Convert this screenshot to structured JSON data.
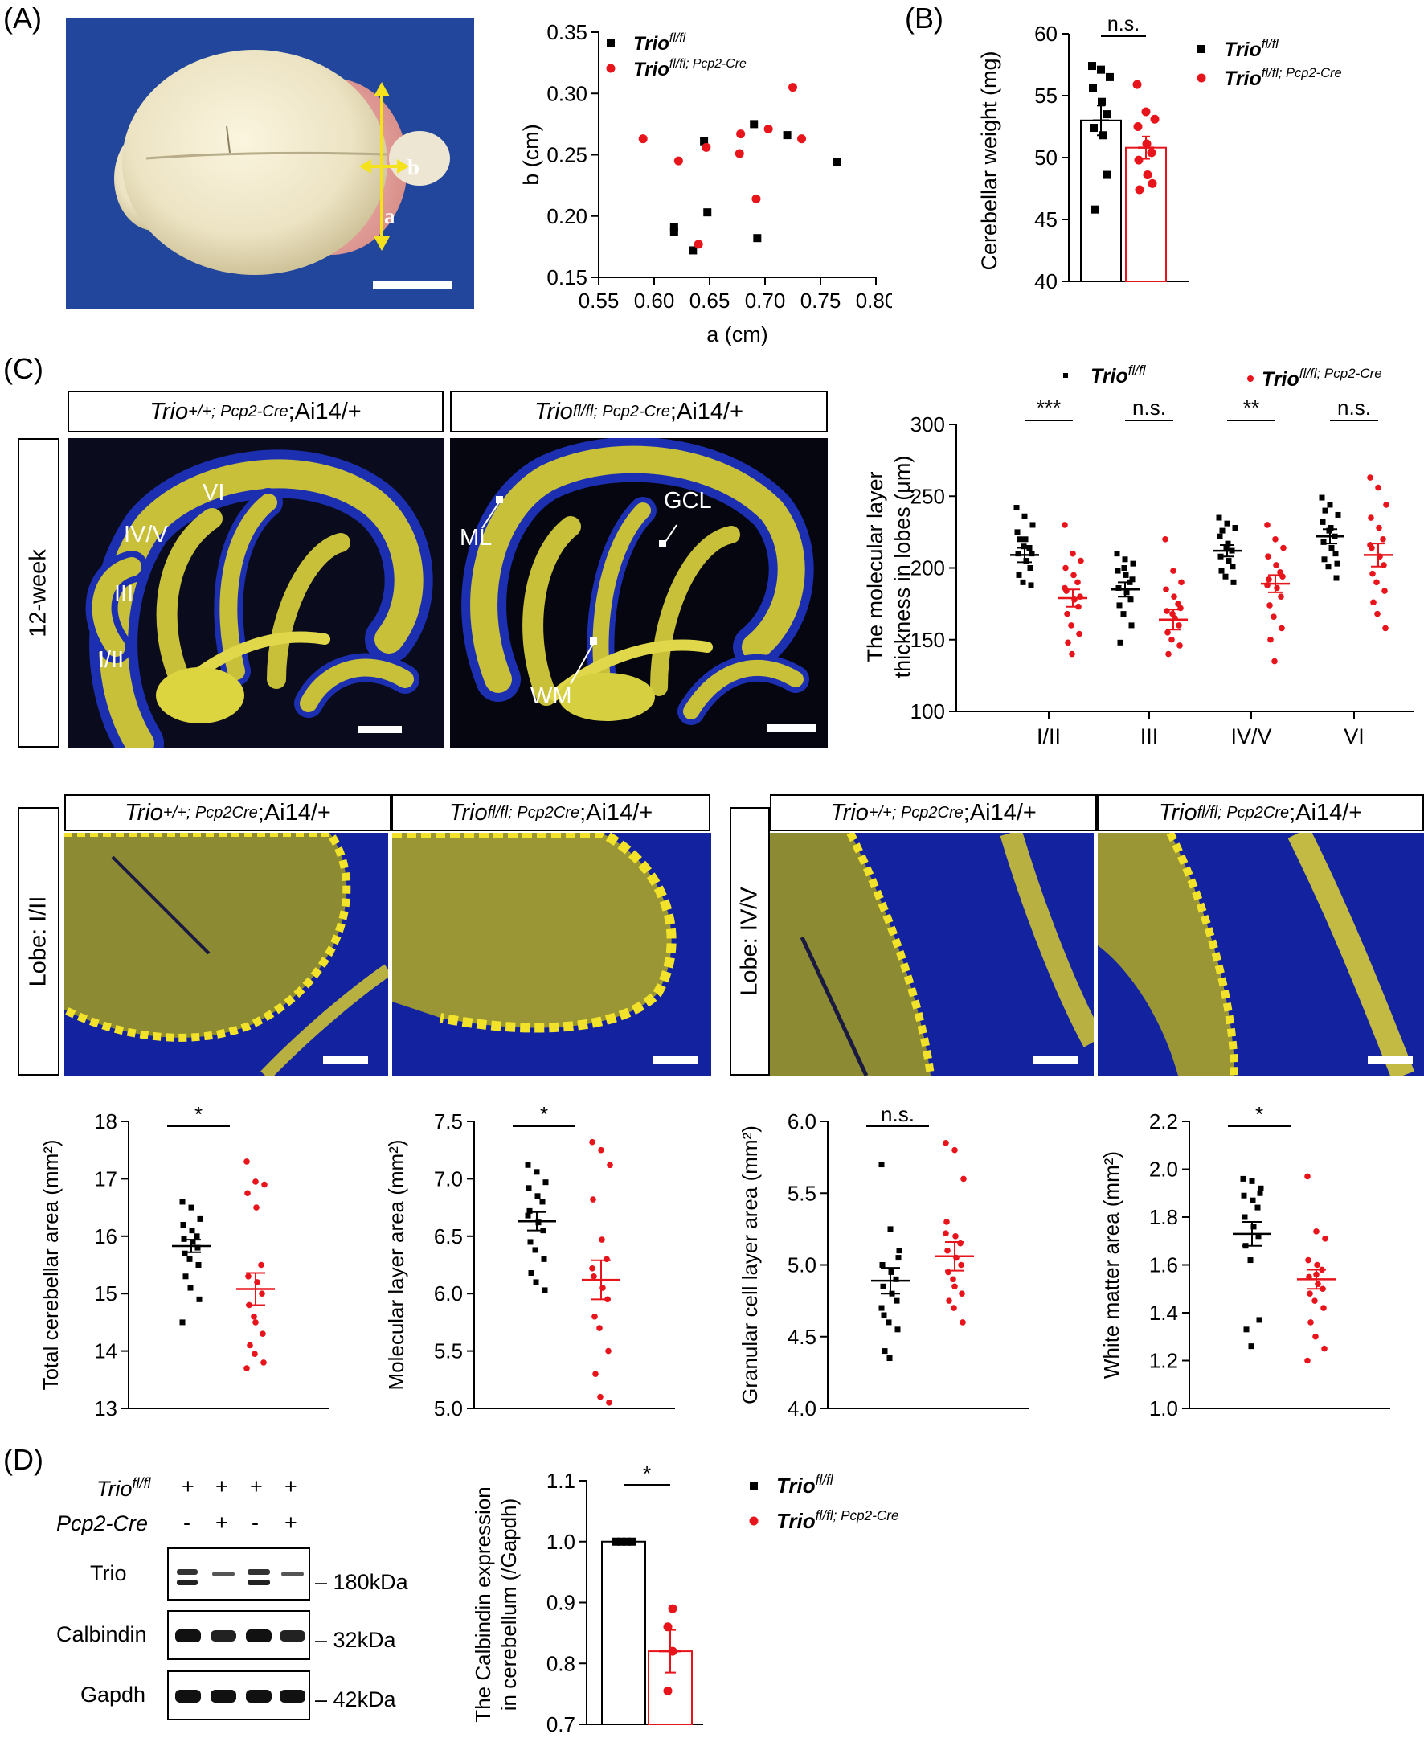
{
  "panel_labels": {
    "A": "(A)",
    "B": "(B)",
    "C": "(C)",
    "D": "(D)"
  },
  "panel_a": {
    "photo_label_a": "a",
    "photo_label_b": "b"
  },
  "legend": {
    "trio_fl": "Trio",
    "trio_fl_sup": "fl/fl",
    "trio_cre": "Trio",
    "trio_cre_sup": "fl/fl; Pcp2-Cre"
  },
  "panel_c_images": {
    "ctrl_label_main": "Trio",
    "ctrl_label_sup": "+/+; Pcp2-Cre",
    "ctrl_label_tail": ";Ai14/+",
    "ko_label_main": "Trio",
    "ko_label_sup": "fl/fl; Pcp2-Cre",
    "ko_label_tail": ";Ai14/+",
    "age": "12-week",
    "lobe_labels": [
      "IV/V",
      "VI",
      "III",
      "I/II"
    ],
    "region_labels": [
      "ML",
      "GCL",
      "WM"
    ]
  },
  "zoom_images": {
    "ctrl_main": "Trio",
    "ctrl_sup": "+/+; Pcp2Cre",
    "ko_main": "Trio",
    "ko_sup": "fl/fl; Pcp2Cre",
    "tail": ";Ai14/+",
    "lobe_a": "Lobe: I/II",
    "lobe_b": "Lobe: IV/V"
  },
  "panel_d": {
    "row1_label": "Trio",
    "row1_sup": "fl/fl",
    "row2_label": "Pcp2-Cre",
    "row1_values": [
      "+",
      "+",
      "+",
      "+"
    ],
    "row2_values": [
      "-",
      "+",
      "-",
      "+"
    ],
    "blots": [
      {
        "name": "Trio",
        "size": "180kDa"
      },
      {
        "name": "Calbindin",
        "size": "32kDa"
      },
      {
        "name": "Gapdh",
        "size": "42kDa"
      }
    ]
  },
  "colors": {
    "control": "#000000",
    "knockout": "#e8141b",
    "fluor_yellow": "#d8d23a",
    "fluor_blue": "#1a2aa8"
  },
  "chart_data": [
    {
      "id": "scatter_a_b",
      "type": "scatter",
      "xlabel": "a (cm)",
      "ylabel": "b (cm)",
      "xlim": [
        0.55,
        0.8
      ],
      "ylim": [
        0.15,
        0.35
      ],
      "xticks": [
        "0.55",
        "0.60",
        "0.65",
        "0.70",
        "0.75",
        "0.80"
      ],
      "yticks": [
        "0.15",
        "0.20",
        "0.25",
        "0.30",
        "0.35"
      ],
      "series": [
        {
          "name": "Trio fl/fl",
          "points": [
            [
              0.645,
              0.261
            ],
            [
              0.69,
              0.275
            ],
            [
              0.72,
              0.266
            ],
            [
              0.765,
              0.244
            ],
            [
              0.648,
              0.203
            ],
            [
              0.618,
              0.191
            ],
            [
              0.618,
              0.187
            ],
            [
              0.635,
              0.172
            ],
            [
              0.693,
              0.182
            ]
          ]
        },
        {
          "name": "Trio fl/fl; Pcp2-Cre",
          "points": [
            [
              0.59,
              0.263
            ],
            [
              0.622,
              0.245
            ],
            [
              0.647,
              0.256
            ],
            [
              0.678,
              0.267
            ],
            [
              0.703,
              0.271
            ],
            [
              0.725,
              0.305
            ],
            [
              0.733,
              0.263
            ],
            [
              0.677,
              0.251
            ],
            [
              0.692,
              0.214
            ],
            [
              0.64,
              0.177
            ]
          ]
        }
      ]
    },
    {
      "id": "cerebellar_weight",
      "type": "bar",
      "ylabel": "Cerebellar weight (mg)",
      "ylim": [
        40,
        60
      ],
      "yticks": [
        "40",
        "45",
        "50",
        "55",
        "60"
      ],
      "significance": "n.s.",
      "series": [
        {
          "name": "Trio fl/fl",
          "mean": 53.0,
          "sem": 1.2,
          "values": [
            57.4,
            57.1,
            56.5,
            55.6,
            54.5,
            53.5,
            52.4,
            51.8,
            48.6,
            45.8
          ]
        },
        {
          "name": "Trio fl/fl; Pcp2-Cre",
          "mean": 50.8,
          "sem": 0.9,
          "values": [
            55.9,
            53.7,
            53.1,
            52.5,
            51.1,
            50.4,
            49.8,
            48.6,
            47.9,
            47.4
          ]
        }
      ]
    },
    {
      "id": "ml_thickness",
      "type": "scatter",
      "ylabel_line1": "The molecular layer",
      "ylabel_line2": "thickness in lobes (μm)",
      "ylim": [
        100,
        300
      ],
      "yticks": [
        "100",
        "150",
        "200",
        "250",
        "300"
      ],
      "categories": [
        "I/II",
        "III",
        "IV/V",
        "VI"
      ],
      "significance": [
        "***",
        "n.s.",
        "**",
        "n.s."
      ],
      "series": [
        {
          "name": "Trio fl/fl",
          "means": [
            209,
            185,
            212,
            222
          ],
          "sems": [
            5,
            5,
            4,
            5
          ],
          "values": [
            [
              242,
              236,
              230,
              225,
              220,
              214,
              210,
              205,
              200,
              195,
              190,
              188,
              220,
              215,
              210
            ],
            [
              210,
              206,
              203,
              198,
              195,
              190,
              186,
              183,
              178,
              174,
              168,
              160,
              148,
              200,
              192
            ],
            [
              235,
              231,
              228,
              222,
              217,
              212,
              208,
              205,
              201,
              198,
              194,
              190,
              226,
              214
            ],
            [
              249,
              244,
              237,
              232,
              228,
              222,
              218,
              214,
              210,
              206,
              201,
              193,
              240,
              226,
              203
            ]
          ]
        },
        {
          "name": "Trio fl/fl; Pcp2-Cre",
          "means": [
            179,
            164,
            189,
            209
          ],
          "sems": [
            6,
            7,
            6,
            8
          ],
          "values": [
            [
              230,
              210,
              205,
              200,
              195,
              190,
              184,
              178,
              173,
              168,
              160,
              154,
              148,
              140,
              180,
              186
            ],
            [
              220,
              198,
              190,
              185,
              180,
              175,
              170,
              165,
              160,
              155,
              150,
              146,
              140,
              168,
              172
            ],
            [
              230,
              220,
              214,
              208,
              202,
              197,
              192,
              186,
              180,
              174,
              166,
              158,
              150,
              135,
              194,
              188
            ],
            [
              263,
              256,
              244,
              235,
              228,
              220,
              214,
              208,
              202,
              196,
              190,
              184,
              176,
              168,
              158,
              216
            ]
          ]
        }
      ]
    },
    {
      "id": "total_area",
      "type": "scatter",
      "ylabel": "Total cerebellar area (mm²)",
      "ylim": [
        13,
        18
      ],
      "yticks": [
        "13",
        "14",
        "15",
        "16",
        "17",
        "18"
      ],
      "significance": "*",
      "series": [
        {
          "name": "Trio fl/fl",
          "mean": 15.83,
          "sem": 0.11,
          "values": [
            16.6,
            16.5,
            16.3,
            16.2,
            16.1,
            16.0,
            15.95,
            15.9,
            15.8,
            15.7,
            15.6,
            15.5,
            15.3,
            15.1,
            14.9,
            14.5
          ]
        },
        {
          "name": "Trio fl/fl; Pcp2-Cre",
          "mean": 15.08,
          "sem": 0.28,
          "values": [
            17.3,
            16.95,
            16.9,
            16.75,
            16.5,
            15.5,
            15.3,
            15.2,
            15.0,
            14.8,
            14.6,
            14.3,
            14.1,
            13.95,
            13.8,
            13.7,
            14.5
          ]
        }
      ]
    },
    {
      "id": "ml_area",
      "type": "scatter",
      "ylabel": "Molecular layer area (mm²)",
      "ylim": [
        5.0,
        7.5
      ],
      "yticks": [
        "5.0",
        "5.5",
        "6.0",
        "6.5",
        "7.0",
        "7.5"
      ],
      "significance": "*",
      "series": [
        {
          "name": "Trio fl/fl",
          "mean": 6.63,
          "sem": 0.08,
          "values": [
            7.12,
            7.06,
            6.97,
            6.92,
            6.85,
            6.8,
            6.72,
            6.62,
            6.55,
            6.45,
            6.38,
            6.3,
            6.18,
            6.1,
            6.03,
            6.68
          ]
        },
        {
          "name": "Trio fl/fl; Pcp2-Cre",
          "mean": 6.12,
          "sem": 0.17,
          "values": [
            7.32,
            7.25,
            7.12,
            6.82,
            6.47,
            6.3,
            6.15,
            6.05,
            5.95,
            5.8,
            5.7,
            5.5,
            5.3,
            5.1,
            5.05,
            6.22
          ]
        }
      ]
    },
    {
      "id": "gcl_area",
      "type": "scatter",
      "ylabel": "Granular cell layer area (mm²)",
      "ylim": [
        4.0,
        6.0
      ],
      "yticks": [
        "4.0",
        "4.5",
        "5.0",
        "5.5",
        "6.0"
      ],
      "significance": "n.s.",
      "series": [
        {
          "name": "Trio fl/fl",
          "mean": 4.89,
          "sem": 0.09,
          "values": [
            5.7,
            5.25,
            5.1,
            5.0,
            4.95,
            4.9,
            4.85,
            4.8,
            4.75,
            4.65,
            4.6,
            4.55,
            4.4,
            4.35,
            5.05,
            4.7
          ]
        },
        {
          "name": "Trio fl/fl; Pcp2-Cre",
          "mean": 5.06,
          "sem": 0.1,
          "values": [
            5.85,
            5.8,
            5.6,
            5.3,
            5.2,
            5.15,
            5.1,
            5.05,
            5.0,
            4.95,
            4.9,
            4.8,
            4.75,
            4.7,
            4.6,
            5.22,
            4.85
          ]
        }
      ]
    },
    {
      "id": "wm_area",
      "type": "scatter",
      "ylabel": "White matter area (mm²)",
      "ylim": [
        1.0,
        2.2
      ],
      "yticks": [
        "1.0",
        "1.2",
        "1.4",
        "1.6",
        "1.8",
        "2.0",
        "2.2"
      ],
      "significance": "*",
      "series": [
        {
          "name": "Trio fl/fl",
          "mean": 1.73,
          "sem": 0.05,
          "values": [
            1.96,
            1.95,
            1.92,
            1.89,
            1.87,
            1.84,
            1.8,
            1.76,
            1.72,
            1.68,
            1.62,
            1.37,
            1.33,
            1.26,
            1.9
          ]
        },
        {
          "name": "Trio fl/fl; Pcp2-Cre",
          "mean": 1.54,
          "sem": 0.04,
          "values": [
            1.97,
            1.74,
            1.71,
            1.62,
            1.6,
            1.58,
            1.55,
            1.52,
            1.5,
            1.48,
            1.45,
            1.42,
            1.36,
            1.3,
            1.25,
            1.2,
            1.56
          ]
        }
      ]
    },
    {
      "id": "calbindin",
      "type": "bar",
      "ylabel_line1": "The Calbindin expression",
      "ylabel_line2": "in cerebellum (/Gapdh)",
      "ylim": [
        0.7,
        1.1
      ],
      "yticks": [
        "0.7",
        "0.8",
        "0.9",
        "1.0",
        "1.1"
      ],
      "significance": "*",
      "series": [
        {
          "name": "Trio fl/fl",
          "mean": 1.0,
          "sem": 0.0,
          "values": [
            1.0,
            1.0,
            1.0,
            1.0
          ]
        },
        {
          "name": "Trio fl/fl; Pcp2-Cre",
          "mean": 0.82,
          "sem": 0.035,
          "values": [
            0.89,
            0.86,
            0.82,
            0.755
          ]
        }
      ]
    }
  ]
}
